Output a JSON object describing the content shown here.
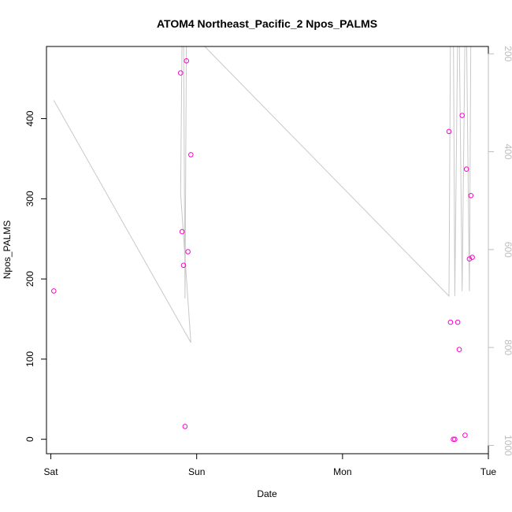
{
  "chart_data": {
    "type": "scatter",
    "title": "ATOM4 Northeast_Pacific_2 Npos_PALMS",
    "xlabel": "Date",
    "ylabel": "Npos_PALMS",
    "x_tick_labels": [
      "Sat",
      "Sun",
      "Mon",
      "Tue"
    ],
    "x_ticks": [
      0,
      1,
      2,
      3
    ],
    "xlim": [
      -0.03,
      3.0
    ],
    "ylim": [
      -18,
      490
    ],
    "y_ticks": [
      0,
      100,
      200,
      300,
      400
    ],
    "y2_ticks": [
      200,
      400,
      600,
      800,
      1000
    ],
    "y2lim": [
      1017,
      185
    ],
    "y2_reversed": true,
    "grid": false,
    "colors": {
      "points": "#ff00cc",
      "line": "#c8c8c8",
      "secondary_axis": "#bdbdbd"
    },
    "series": [
      {
        "type": "points",
        "x": [
          0.02,
          0.89,
          0.9,
          0.91,
          0.92,
          0.93,
          0.94,
          0.96,
          2.73,
          2.74,
          2.76,
          2.77,
          2.79,
          2.8,
          2.82,
          2.84,
          2.85,
          2.87,
          2.88,
          2.89
        ],
        "y": [
          185,
          457,
          259,
          217,
          16,
          472,
          234,
          355,
          384,
          146,
          0,
          0,
          146,
          112,
          404,
          5,
          337,
          225,
          304,
          227
        ]
      },
      {
        "type": "line",
        "axis": "right",
        "x": [
          0.02,
          0.96,
          0.89,
          0.9,
          0.91,
          0.92,
          0.93,
          0.94,
          2.73,
          2.74,
          2.76,
          2.77,
          2.79,
          2.8,
          2.82,
          2.84,
          2.85,
          2.87,
          2.88
        ],
        "y": [
          295,
          790,
          485,
          150,
          150,
          700,
          150,
          150,
          695,
          150,
          150,
          695,
          150,
          150,
          685,
          150,
          150,
          685,
          150
        ]
      }
    ]
  }
}
